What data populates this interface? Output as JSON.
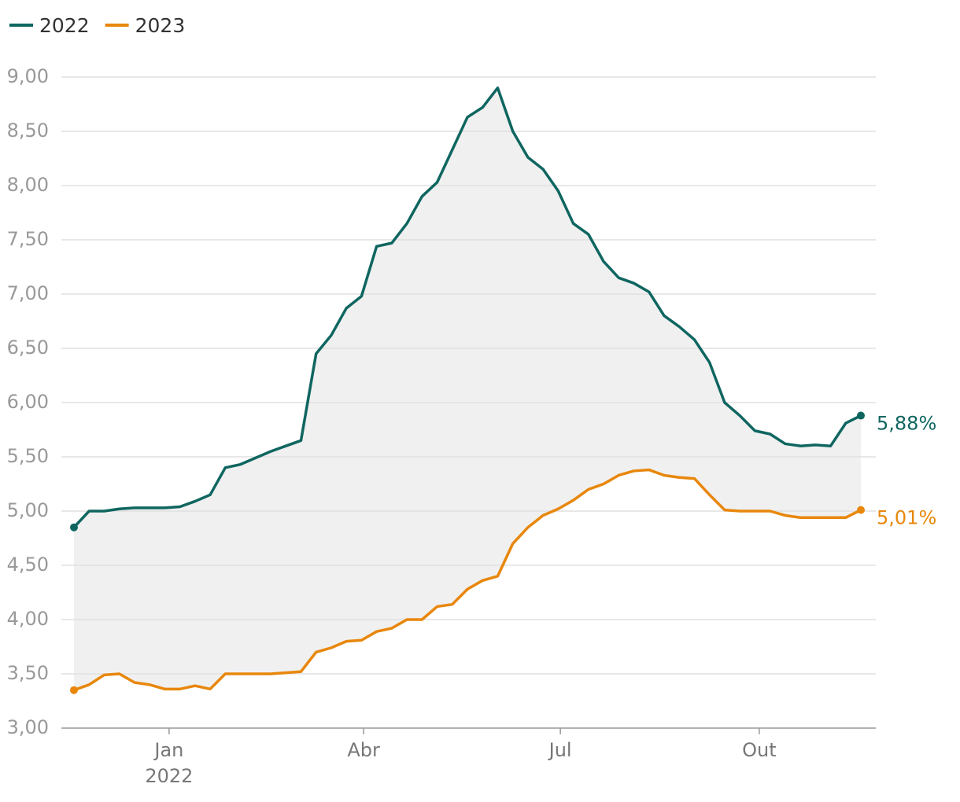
{
  "chart_data": {
    "type": "line",
    "x": [
      "2021-11-18",
      "2021-11-25",
      "2021-12-02",
      "2021-12-09",
      "2021-12-16",
      "2021-12-23",
      "2021-12-30",
      "2022-01-06",
      "2022-01-13",
      "2022-01-20",
      "2022-01-27",
      "2022-02-03",
      "2022-02-10",
      "2022-02-17",
      "2022-02-24",
      "2022-03-03",
      "2022-03-10",
      "2022-03-17",
      "2022-03-24",
      "2022-03-31",
      "2022-04-07",
      "2022-04-14",
      "2022-04-21",
      "2022-04-28",
      "2022-05-05",
      "2022-05-12",
      "2022-05-19",
      "2022-05-26",
      "2022-06-02",
      "2022-06-09",
      "2022-06-16",
      "2022-06-23",
      "2022-06-30",
      "2022-07-07",
      "2022-07-14",
      "2022-07-21",
      "2022-07-28",
      "2022-08-04",
      "2022-08-11",
      "2022-08-18",
      "2022-08-25",
      "2022-09-01",
      "2022-09-08",
      "2022-09-15",
      "2022-09-22",
      "2022-09-29",
      "2022-10-06",
      "2022-10-13",
      "2022-10-20",
      "2022-10-27",
      "2022-11-03",
      "2022-11-10",
      "2022-11-17"
    ],
    "series": [
      {
        "name": "2022",
        "color": "#0f6660",
        "values": [
          4.85,
          5.0,
          5.0,
          5.02,
          5.03,
          5.03,
          5.03,
          5.04,
          5.09,
          5.15,
          5.4,
          5.43,
          5.49,
          5.55,
          5.6,
          5.65,
          6.45,
          6.62,
          6.87,
          6.98,
          7.44,
          7.47,
          7.65,
          7.9,
          8.03,
          8.33,
          8.63,
          8.72,
          8.9,
          8.5,
          8.26,
          8.15,
          7.95,
          7.65,
          7.55,
          7.3,
          7.15,
          7.1,
          7.02,
          6.8,
          6.7,
          6.58,
          6.37,
          6.0,
          5.88,
          5.74,
          5.71,
          5.62,
          5.6,
          5.61,
          5.6,
          5.81,
          5.88
        ],
        "value_labels": [
          null,
          null,
          null,
          null,
          null,
          null,
          null,
          null,
          null,
          null,
          null,
          null,
          null,
          null,
          null,
          null,
          null,
          null,
          null,
          null,
          null,
          null,
          null,
          null,
          null,
          null,
          null,
          null,
          null,
          null,
          null,
          null,
          null,
          null,
          null,
          null,
          null,
          null,
          null,
          null,
          null,
          null,
          null,
          null,
          null,
          null,
          null,
          null,
          null,
          null,
          null,
          null,
          "5,88%"
        ]
      },
      {
        "name": "2023",
        "color": "#e8870c",
        "values": [
          3.35,
          3.4,
          3.49,
          3.5,
          3.42,
          3.4,
          3.36,
          3.36,
          3.39,
          3.36,
          3.5,
          3.5,
          3.5,
          3.5,
          3.51,
          3.52,
          3.7,
          3.74,
          3.8,
          3.81,
          3.89,
          3.92,
          4.0,
          4.0,
          4.12,
          4.14,
          4.28,
          4.36,
          4.4,
          4.7,
          4.85,
          4.96,
          5.02,
          5.1,
          5.2,
          5.25,
          5.33,
          5.37,
          5.38,
          5.33,
          5.31,
          5.3,
          5.15,
          5.01,
          5.0,
          5.0,
          5.0,
          4.96,
          4.94,
          4.94,
          4.94,
          4.94,
          5.01
        ],
        "value_labels": [
          null,
          null,
          null,
          null,
          null,
          null,
          null,
          null,
          null,
          null,
          null,
          null,
          null,
          null,
          null,
          null,
          null,
          null,
          null,
          null,
          null,
          null,
          null,
          null,
          null,
          null,
          null,
          null,
          null,
          null,
          null,
          null,
          null,
          null,
          null,
          null,
          null,
          null,
          null,
          null,
          null,
          null,
          null,
          null,
          null,
          null,
          null,
          null,
          null,
          null,
          null,
          null,
          "5,01%"
        ]
      }
    ],
    "xlim": [
      "2021-11-18",
      "2022-11-17"
    ],
    "xticks": [
      {
        "value": "2022-01-01",
        "label": "Jan"
      },
      {
        "value": "2022-04-01",
        "label": "Abr"
      },
      {
        "value": "2022-07-01",
        "label": "Jul"
      },
      {
        "value": "2022-10-01",
        "label": "Out"
      }
    ],
    "x_year_label": "2022",
    "ylim": [
      3,
      9
    ],
    "yticks": [
      {
        "value": 3,
        "label": "3,00"
      },
      {
        "value": 3.5,
        "label": "3,50"
      },
      {
        "value": 4,
        "label": "4,00"
      },
      {
        "value": 4.5,
        "label": "4,50"
      },
      {
        "value": 5,
        "label": "5,00"
      },
      {
        "value": 5.5,
        "label": "5,50"
      },
      {
        "value": 6,
        "label": "6,00"
      },
      {
        "value": 6.5,
        "label": "6,50"
      },
      {
        "value": 7,
        "label": "7,00"
      },
      {
        "value": 7.5,
        "label": "7,50"
      },
      {
        "value": 8,
        "label": "8,00"
      },
      {
        "value": 8.5,
        "label": "8,50"
      },
      {
        "value": 9,
        "label": "9,00"
      }
    ],
    "grid": true,
    "legend": "top-left",
    "fill_between": true
  }
}
